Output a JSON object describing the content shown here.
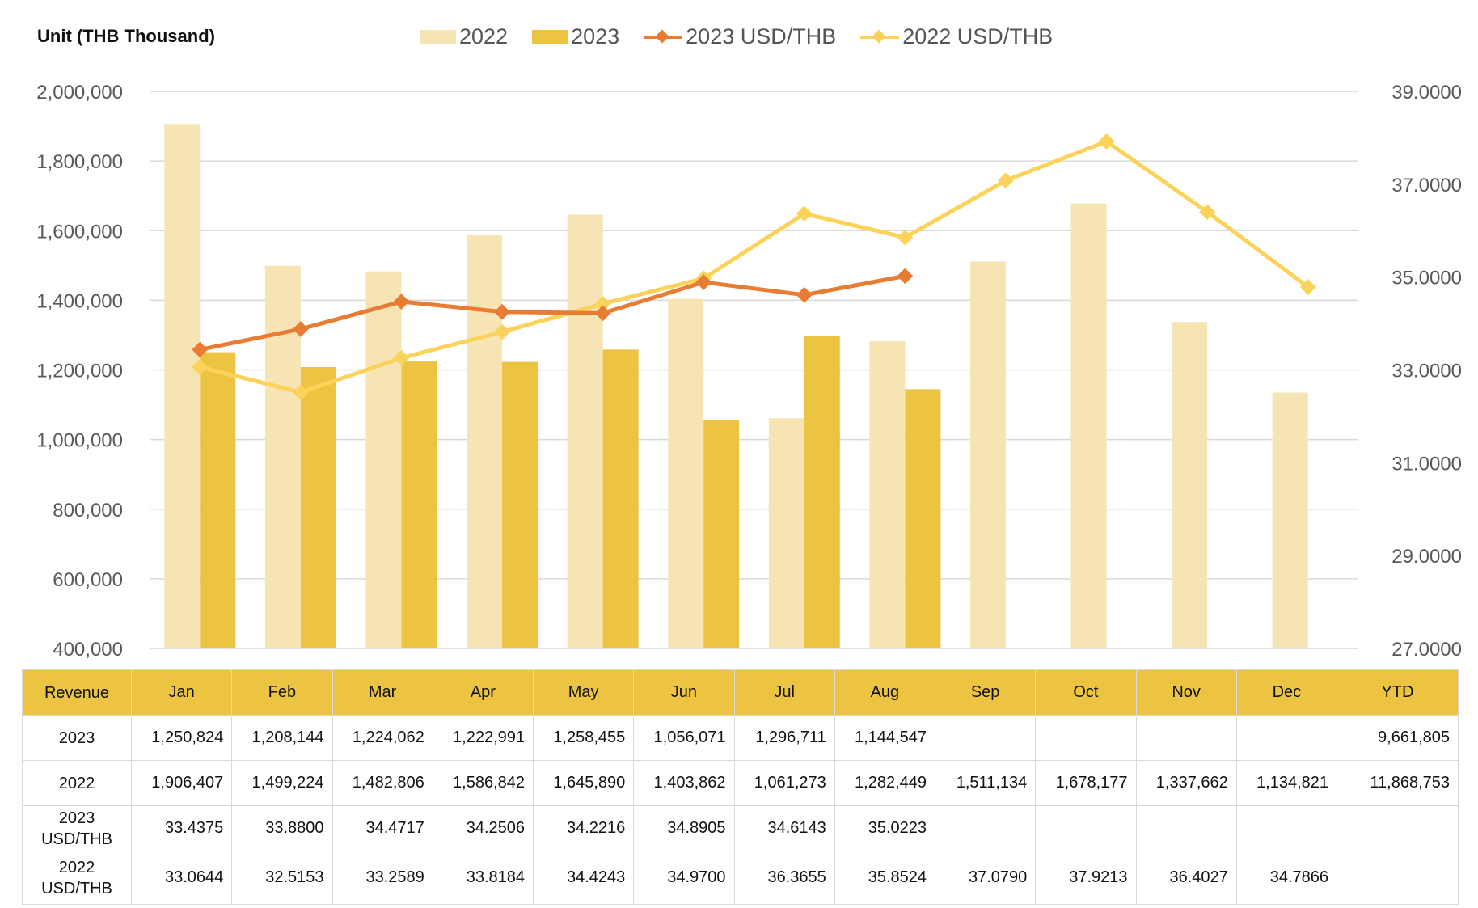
{
  "unit_label": "Unit (THB  Thousand)",
  "legend": [
    {
      "label": "2022",
      "kind": "bar",
      "color": "#f7e4b5"
    },
    {
      "label": "2023",
      "kind": "bar",
      "color": "#ecc441"
    },
    {
      "label": "2023 USD/THB",
      "kind": "line",
      "color": "#e97c33"
    },
    {
      "label": "2022 USD/THB",
      "kind": "line",
      "color": "#fbd35a"
    }
  ],
  "chart_data": {
    "type": "bar",
    "categories": [
      "Jan",
      "Feb",
      "Mar",
      "Apr",
      "May",
      "Jun",
      "Jul",
      "Aug",
      "Sep",
      "Oct",
      "Nov",
      "Dec"
    ],
    "series": [
      {
        "name": "2022",
        "type": "bar",
        "axis": "left",
        "color": "#f7e4b5",
        "values": [
          1906407,
          1499224,
          1482806,
          1586842,
          1645890,
          1403862,
          1061273,
          1282449,
          1511134,
          1678177,
          1337662,
          1134821
        ]
      },
      {
        "name": "2023",
        "type": "bar",
        "axis": "left",
        "color": "#ecc441",
        "values": [
          1250824,
          1208144,
          1224062,
          1222991,
          1258455,
          1056071,
          1296711,
          1144547,
          null,
          null,
          null,
          null
        ]
      },
      {
        "name": "2023 USD/THB",
        "type": "line",
        "axis": "right",
        "color": "#e97c33",
        "values": [
          33.4375,
          33.88,
          34.4717,
          34.2506,
          34.2216,
          34.8905,
          34.6143,
          35.0223,
          null,
          null,
          null,
          null
        ]
      },
      {
        "name": "2022 USD/THB",
        "type": "line",
        "axis": "right",
        "color": "#fbd35a",
        "values": [
          33.0644,
          32.5153,
          33.2589,
          33.8184,
          34.4243,
          34.97,
          36.3655,
          35.8524,
          37.079,
          37.9213,
          36.4027,
          34.7866
        ]
      }
    ],
    "y_left": {
      "min": 400000,
      "max": 2000000,
      "ticks": [
        "400,000",
        "600,000",
        "800,000",
        "1,000,000",
        "1,200,000",
        "1,400,000",
        "1,600,000",
        "1,800,000",
        "2,000,000"
      ]
    },
    "y_right": {
      "min": 27,
      "max": 39,
      "ticks": [
        "27.0000",
        "29.0000",
        "31.0000",
        "33.0000",
        "35.0000",
        "37.0000",
        "39.0000"
      ]
    },
    "grid": true,
    "legend_position": "top"
  },
  "table": {
    "header": [
      "Revenue",
      "Jan",
      "Feb",
      "Mar",
      "Apr",
      "May",
      "Jun",
      "Jul",
      "Aug",
      "Sep",
      "Oct",
      "Nov",
      "Dec",
      "YTD"
    ],
    "rows": [
      {
        "label": "2023",
        "cells": [
          "1,250,824",
          "1,208,144",
          "1,224,062",
          "1,222,991",
          "1,258,455",
          "1,056,071",
          "1,296,711",
          "1,144,547",
          "",
          "",
          "",
          "",
          "9,661,805"
        ]
      },
      {
        "label": "2022",
        "cells": [
          "1,906,407",
          "1,499,224",
          "1,482,806",
          "1,586,842",
          "1,645,890",
          "1,403,862",
          "1,061,273",
          "1,282,449",
          "1,511,134",
          "1,678,177",
          "1,337,662",
          "1,134,821",
          "11,868,753"
        ]
      },
      {
        "label": "2023\nUSD/THB",
        "cells": [
          "33.4375",
          "33.8800",
          "34.4717",
          "34.2506",
          "34.2216",
          "34.8905",
          "34.6143",
          "35.0223",
          "",
          "",
          "",
          "",
          ""
        ]
      },
      {
        "label": "2022\nUSD/THB",
        "cells": [
          "33.0644",
          "32.5153",
          "33.2589",
          "33.8184",
          "34.4243",
          "34.9700",
          "36.3655",
          "35.8524",
          "37.0790",
          "37.9213",
          "36.4027",
          "34.7866",
          ""
        ]
      }
    ]
  }
}
